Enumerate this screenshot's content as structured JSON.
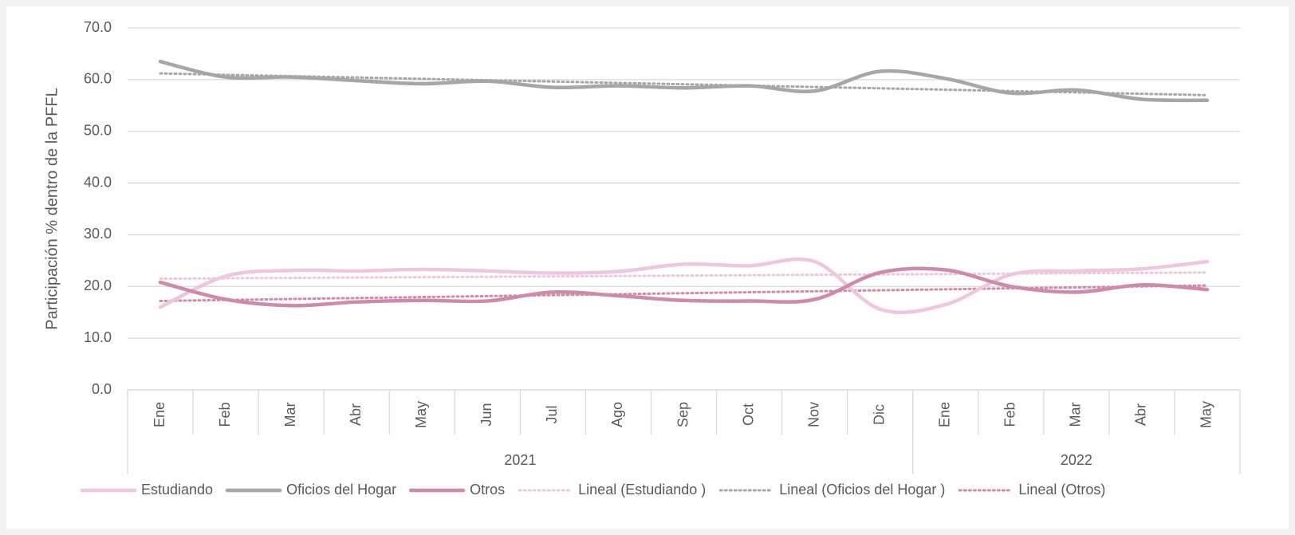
{
  "chart_data": {
    "type": "line",
    "y_label": "Participación % dentro de la PFFL",
    "categories": [
      "Ene",
      "Feb",
      "Mar",
      "Abr",
      "May",
      "Jun",
      "Jul",
      "Ago",
      "Sep",
      "Oct",
      "Nov",
      "Dic",
      "Ene",
      "Feb",
      "Mar",
      "Abr",
      "May"
    ],
    "category_groups": [
      {
        "label": "2021",
        "span": 12
      },
      {
        "label": "2022",
        "span": 5
      }
    ],
    "series": [
      {
        "name": "Estudiando",
        "color": "#efc6df",
        "values": [
          16.0,
          22.0,
          23.1,
          23.0,
          23.3,
          23.0,
          22.6,
          22.9,
          24.3,
          24.0,
          24.8,
          15.6,
          16.5,
          22.3,
          23.0,
          23.4,
          24.8
        ]
      },
      {
        "name": "Oficios del Hogar",
        "color": "#a6a5a8",
        "values": [
          63.5,
          60.5,
          60.5,
          59.8,
          59.2,
          59.7,
          58.5,
          58.8,
          58.4,
          58.8,
          57.8,
          61.6,
          60.2,
          57.4,
          58.0,
          56.2,
          56.0
        ]
      },
      {
        "name": "Otros",
        "color": "#d08aa9",
        "values": [
          20.8,
          17.5,
          16.3,
          17.0,
          17.3,
          17.2,
          18.9,
          18.2,
          17.3,
          17.2,
          17.5,
          22.7,
          23.2,
          20.0,
          18.9,
          20.3,
          19.4
        ]
      }
    ],
    "trendlines": [
      {
        "name": "Lineal (Estudiando )",
        "color": "#efc6df",
        "start": 21.5,
        "end": 22.7
      },
      {
        "name": "Lineal (Oficios del Hogar )",
        "color": "#a6a5a8",
        "start": 61.2,
        "end": 57.0
      },
      {
        "name": "Lineal (Otros)",
        "color": "#d08aa9",
        "start": 17.2,
        "end": 20.2
      }
    ],
    "ylim": [
      0,
      70
    ],
    "yticks": [
      {
        "value": 0,
        "label": "0.0"
      },
      {
        "value": 10,
        "label": "10.0"
      },
      {
        "value": 20,
        "label": "20.0"
      },
      {
        "value": 30,
        "label": "30.0"
      },
      {
        "value": 40,
        "label": "40.0"
      },
      {
        "value": 50,
        "label": "50.0"
      },
      {
        "value": 60,
        "label": "60.0"
      },
      {
        "value": 70,
        "label": "70.0"
      }
    ],
    "grid": true,
    "legend": "bottom"
  }
}
